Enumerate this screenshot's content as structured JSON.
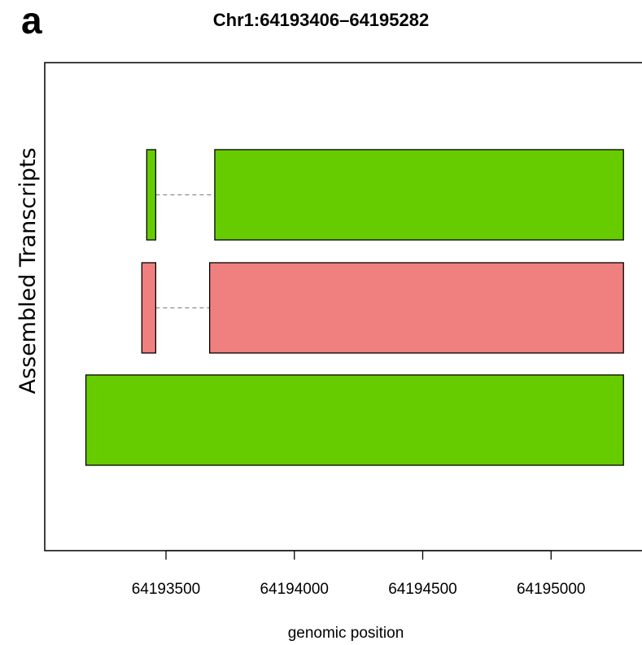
{
  "panel_label": "a",
  "chart_data": {
    "type": "bar",
    "title": "Chr1:64193406–64195282",
    "xlabel": "genomic position",
    "ylabel": "Assembled Transcripts",
    "xlim": [
      64193100,
      64195350
    ],
    "x_ticks": [
      64193500,
      64194000,
      64194500,
      64195000
    ],
    "x_tick_labels": [
      "64193500",
      "64194000",
      "64194500",
      "64195000"
    ],
    "transcripts": [
      {
        "color": "#66cc00",
        "exons": [
          [
            64193425,
            64193460
          ],
          [
            64193690,
            64195282
          ]
        ],
        "introns": [
          [
            64193460,
            64193690
          ]
        ]
      },
      {
        "color": "#f08080",
        "exons": [
          [
            64193406,
            64193460
          ],
          [
            64193670,
            64195282
          ]
        ],
        "introns": [
          [
            64193460,
            64193670
          ]
        ]
      },
      {
        "color": "#66cc00",
        "exons": [
          [
            64193188,
            64195282
          ]
        ],
        "introns": []
      }
    ]
  }
}
